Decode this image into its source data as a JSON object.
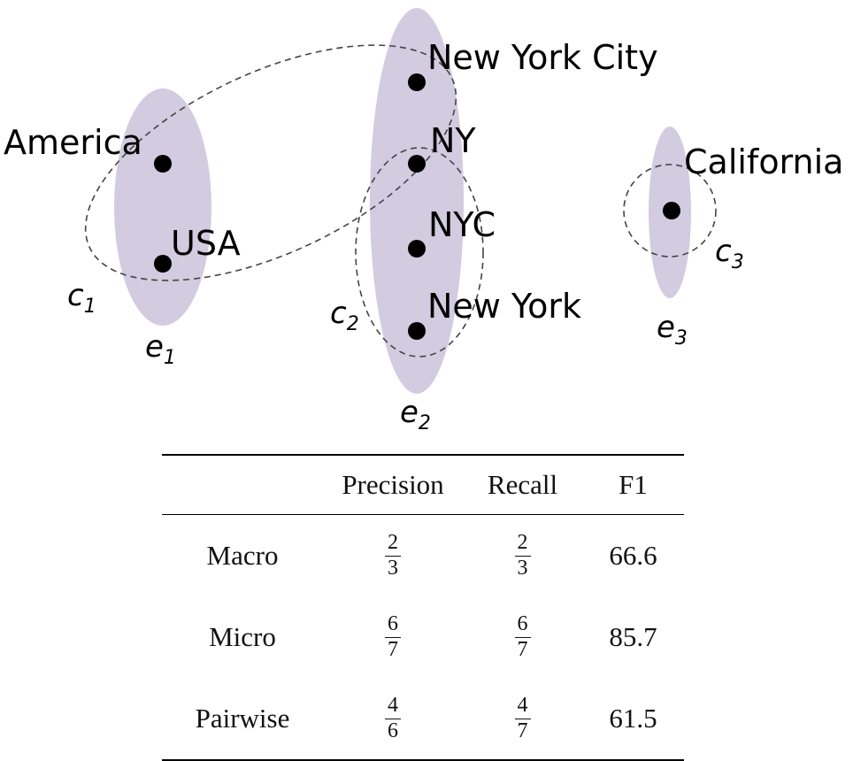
{
  "diagram": {
    "mentions": {
      "america": "America",
      "usa": "USA",
      "new_york_city": "New York City",
      "ny": "NY",
      "nyc": "NYC",
      "new_york": "New York",
      "california": "California"
    },
    "entities": [
      {
        "base": "e",
        "index": "1"
      },
      {
        "base": "e",
        "index": "2"
      },
      {
        "base": "e",
        "index": "3"
      }
    ],
    "clusters": [
      {
        "base": "c",
        "index": "1"
      },
      {
        "base": "c",
        "index": "2"
      },
      {
        "base": "c",
        "index": "3"
      }
    ],
    "colors": {
      "entity_fill": "#d3cbe0",
      "cluster_stroke": "#444444"
    }
  },
  "table": {
    "headers": [
      "",
      "Precision",
      "Recall",
      "F1"
    ],
    "rows": [
      {
        "label": "Macro",
        "precision": {
          "num": "2",
          "den": "3"
        },
        "recall": {
          "num": "2",
          "den": "3"
        },
        "f1": "66.6"
      },
      {
        "label": "Micro",
        "precision": {
          "num": "6",
          "den": "7"
        },
        "recall": {
          "num": "6",
          "den": "7"
        },
        "f1": "85.7"
      },
      {
        "label": "Pairwise",
        "precision": {
          "num": "4",
          "den": "6"
        },
        "recall": {
          "num": "4",
          "den": "7"
        },
        "f1": "61.5"
      }
    ]
  }
}
